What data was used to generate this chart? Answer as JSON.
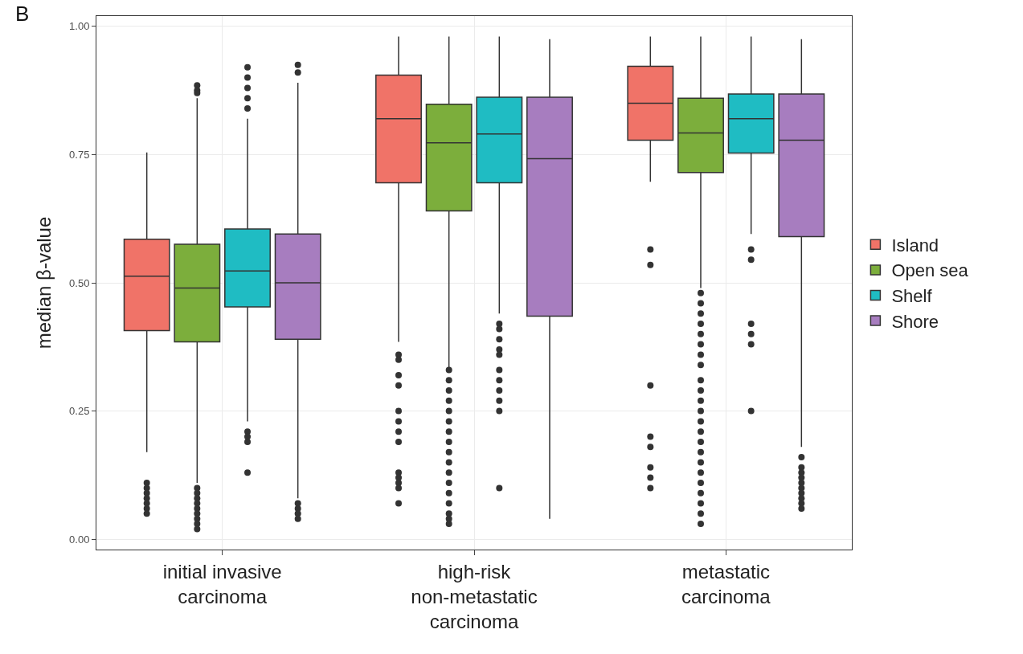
{
  "chart_data": {
    "type": "box",
    "ylabel": "median β-value",
    "annotations": [
      "B"
    ],
    "categories": [
      "initial invasive\ncarcinoma",
      "high-risk\nnon-metastatic\ncarcinoma",
      "metastatic\ncarcinoma"
    ],
    "ylim": [
      -0.02,
      1.02
    ],
    "yticks": [
      {
        "value": 0,
        "label": "0.00"
      },
      {
        "value": 0.25,
        "label": "0.25"
      },
      {
        "value": 0.5,
        "label": "0.50"
      },
      {
        "value": 0.75,
        "label": "0.75"
      },
      {
        "value": 1,
        "label": "1.00"
      }
    ],
    "grid": true,
    "legend": "right",
    "marker": "circle",
    "series": [
      {
        "name": "Island",
        "color": "#f07368",
        "boxes": [
          {
            "low": 0.17,
            "q1": 0.407,
            "median": 0.513,
            "q3": 0.585,
            "high": 0.754,
            "outliers": [
              0.11,
              0.1,
              0.09,
              0.08,
              0.07,
              0.06,
              0.05
            ]
          },
          {
            "low": 0.385,
            "q1": 0.695,
            "median": 0.82,
            "q3": 0.905,
            "high": 0.98,
            "outliers": [
              0.36,
              0.35,
              0.32,
              0.3,
              0.25,
              0.23,
              0.21,
              0.19,
              0.13,
              0.12,
              0.11,
              0.1,
              0.07
            ]
          },
          {
            "low": 0.697,
            "q1": 0.778,
            "median": 0.85,
            "q3": 0.922,
            "high": 0.98,
            "outliers": [
              0.565,
              0.535,
              0.3,
              0.2,
              0.18,
              0.14,
              0.12,
              0.1
            ]
          }
        ]
      },
      {
        "name": "Open sea",
        "color": "#7cae3c",
        "boxes": [
          {
            "low": 0.11,
            "q1": 0.385,
            "median": 0.49,
            "q3": 0.575,
            "high": 0.86,
            "outliers": [
              0.885,
              0.875,
              0.87,
              0.1,
              0.09,
              0.08,
              0.07,
              0.06,
              0.05,
              0.04,
              0.03,
              0.02
            ]
          },
          {
            "low": 0.33,
            "q1": 0.64,
            "median": 0.773,
            "q3": 0.848,
            "high": 0.98,
            "outliers": [
              0.33,
              0.31,
              0.29,
              0.27,
              0.25,
              0.23,
              0.21,
              0.19,
              0.17,
              0.15,
              0.13,
              0.11,
              0.09,
              0.07,
              0.05,
              0.04,
              0.03
            ]
          },
          {
            "low": 0.49,
            "q1": 0.715,
            "median": 0.792,
            "q3": 0.86,
            "high": 0.98,
            "outliers": [
              0.48,
              0.46,
              0.44,
              0.42,
              0.4,
              0.38,
              0.36,
              0.34,
              0.31,
              0.29,
              0.27,
              0.25,
              0.23,
              0.21,
              0.19,
              0.17,
              0.15,
              0.13,
              0.11,
              0.09,
              0.07,
              0.05,
              0.03
            ]
          }
        ]
      },
      {
        "name": "Shelf",
        "color": "#1fbcc3",
        "boxes": [
          {
            "low": 0.23,
            "q1": 0.453,
            "median": 0.523,
            "q3": 0.605,
            "high": 0.82,
            "outliers": [
              0.92,
              0.9,
              0.88,
              0.86,
              0.84,
              0.21,
              0.2,
              0.19,
              0.13
            ]
          },
          {
            "low": 0.44,
            "q1": 0.695,
            "median": 0.79,
            "q3": 0.862,
            "high": 0.98,
            "outliers": [
              0.42,
              0.41,
              0.39,
              0.37,
              0.36,
              0.33,
              0.31,
              0.29,
              0.27,
              0.25,
              0.1
            ]
          },
          {
            "low": 0.595,
            "q1": 0.753,
            "median": 0.82,
            "q3": 0.868,
            "high": 0.98,
            "outliers": [
              0.565,
              0.545,
              0.42,
              0.4,
              0.38,
              0.25
            ]
          }
        ]
      },
      {
        "name": "Shore",
        "color": "#a77dbf",
        "boxes": [
          {
            "low": 0.08,
            "q1": 0.39,
            "median": 0.5,
            "q3": 0.595,
            "high": 0.89,
            "outliers": [
              0.925,
              0.91,
              0.07,
              0.06,
              0.05,
              0.04
            ]
          },
          {
            "low": 0.04,
            "q1": 0.435,
            "median": 0.742,
            "q3": 0.862,
            "high": 0.975
          },
          {
            "low": 0.18,
            "q1": 0.59,
            "median": 0.778,
            "q3": 0.868,
            "high": 0.975,
            "outliers": [
              0.16,
              0.14,
              0.13,
              0.12,
              0.11,
              0.1,
              0.09,
              0.08,
              0.07,
              0.06
            ]
          }
        ]
      }
    ]
  }
}
